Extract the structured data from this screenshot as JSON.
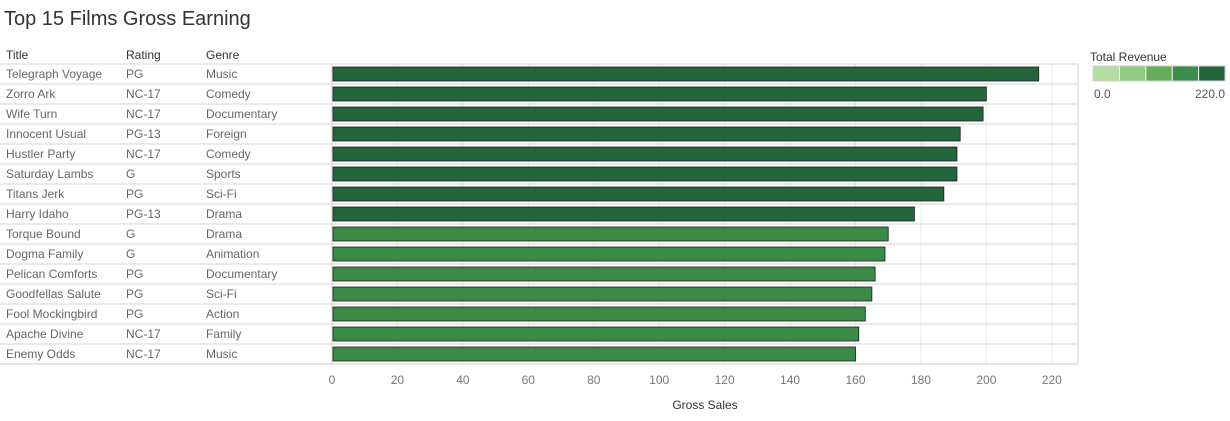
{
  "page": {
    "title": "Top 15 Films Gross Earning"
  },
  "chart_data": {
    "type": "bar",
    "orientation": "horizontal",
    "title": "Top 15 Films Gross Earning",
    "columns": [
      "Title",
      "Rating",
      "Genre"
    ],
    "rows": [
      {
        "title": "Telegraph Voyage",
        "rating": "PG",
        "genre": "Music",
        "value": 216
      },
      {
        "title": "Zorro Ark",
        "rating": "NC-17",
        "genre": "Comedy",
        "value": 200
      },
      {
        "title": "Wife Turn",
        "rating": "NC-17",
        "genre": "Documentary",
        "value": 199
      },
      {
        "title": "Innocent Usual",
        "rating": "PG-13",
        "genre": "Foreign",
        "value": 192
      },
      {
        "title": "Hustler Party",
        "rating": "NC-17",
        "genre": "Comedy",
        "value": 191
      },
      {
        "title": "Saturday Lambs",
        "rating": "G",
        "genre": "Sports",
        "value": 191
      },
      {
        "title": "Titans Jerk",
        "rating": "PG",
        "genre": "Sci-Fi",
        "value": 187
      },
      {
        "title": "Harry Idaho",
        "rating": "PG-13",
        "genre": "Drama",
        "value": 178
      },
      {
        "title": "Torque Bound",
        "rating": "G",
        "genre": "Drama",
        "value": 170
      },
      {
        "title": "Dogma Family",
        "rating": "G",
        "genre": "Animation",
        "value": 169
      },
      {
        "title": "Pelican Comforts",
        "rating": "PG",
        "genre": "Documentary",
        "value": 166
      },
      {
        "title": "Goodfellas Salute",
        "rating": "PG",
        "genre": "Sci-Fi",
        "value": 165
      },
      {
        "title": "Fool Mockingbird",
        "rating": "PG",
        "genre": "Action",
        "value": 163
      },
      {
        "title": "Apache Divine",
        "rating": "NC-17",
        "genre": "Family",
        "value": 161
      },
      {
        "title": "Enemy Odds",
        "rating": "NC-17",
        "genre": "Music",
        "value": 160
      }
    ],
    "xlabel": "Gross Sales",
    "xlim": [
      0,
      228
    ],
    "xticks": [
      0,
      20,
      40,
      60,
      80,
      100,
      120,
      140,
      160,
      180,
      200,
      220
    ],
    "grid": true,
    "legend": {
      "title": "Total Revenue",
      "min_label": "0.0",
      "max_label": "220.0",
      "placement": "top-right",
      "colors": [
        "#b3dca3",
        "#8dcb7e",
        "#66ae5c",
        "#3d8e4c",
        "#24663b"
      ]
    },
    "bar_colors": {
      "high": "#24663b",
      "low": "#3a8a48",
      "threshold": 175
    }
  }
}
